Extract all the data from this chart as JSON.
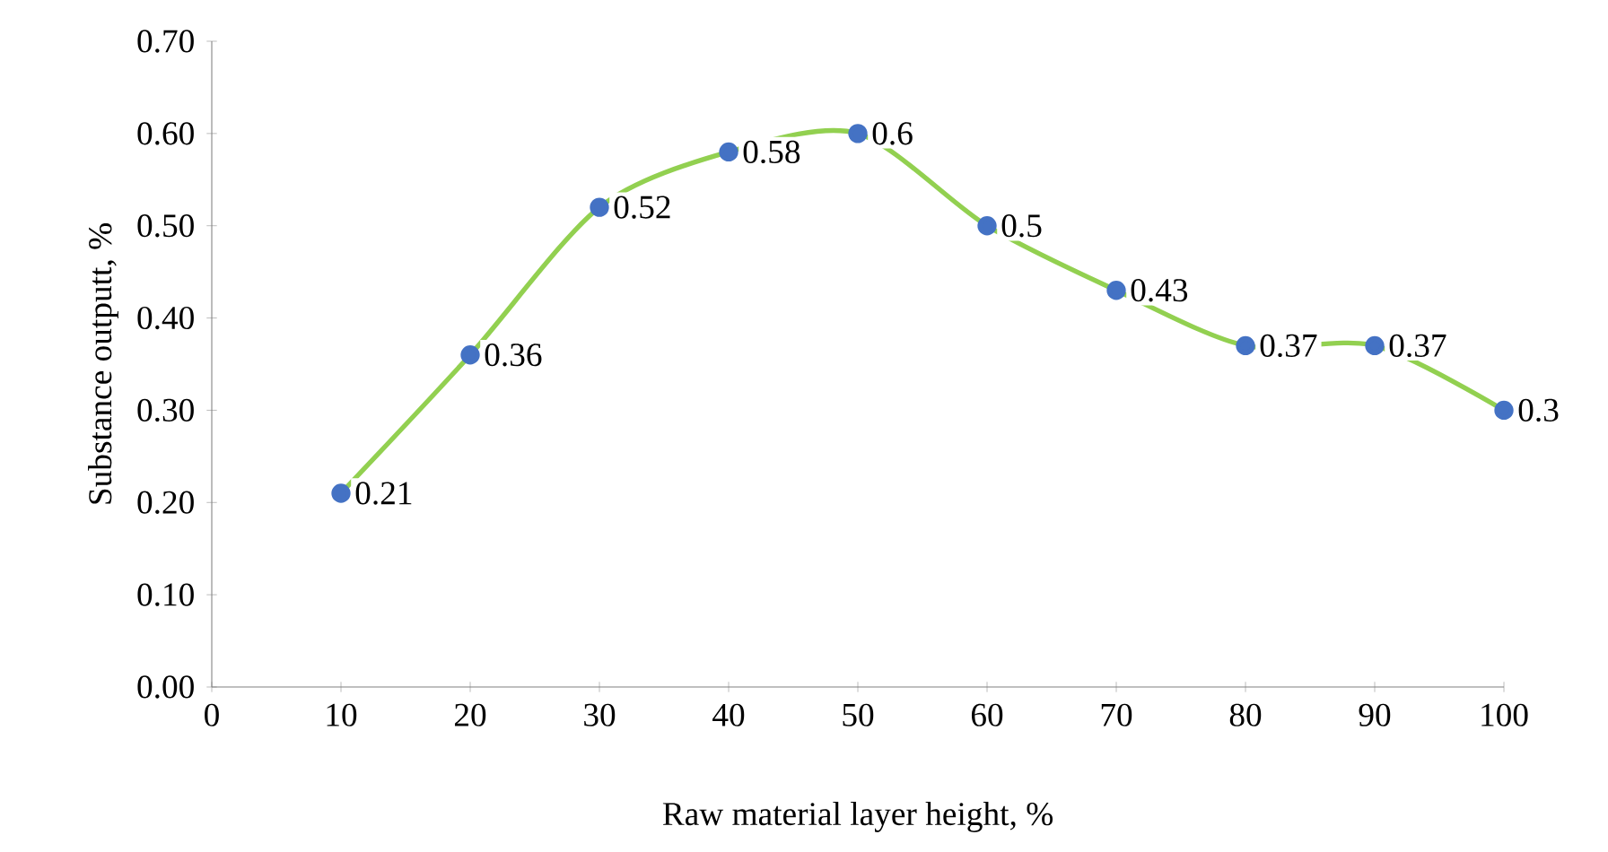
{
  "chart_data": {
    "type": "line",
    "xlabel": "Raw material layer height, %",
    "ylabel": "Substance outputt, %",
    "x": [
      10,
      20,
      30,
      40,
      50,
      60,
      70,
      80,
      90,
      100
    ],
    "values": [
      0.21,
      0.36,
      0.52,
      0.58,
      0.6,
      0.5,
      0.43,
      0.37,
      0.37,
      0.3
    ],
    "color": "#92d050",
    "marker": "circle",
    "line_style": "solid",
    "data_labels": true,
    "grid": false,
    "xlim": [
      0,
      100
    ],
    "xticks": [
      0,
      10,
      20,
      30,
      40,
      50,
      60,
      70,
      80,
      90,
      100
    ],
    "ylim": [
      0,
      0.7
    ],
    "yticks": [
      {
        "value": 0,
        "label": "0.00"
      },
      {
        "value": 0.1,
        "label": "0.10"
      },
      {
        "value": 0.2,
        "label": "0.20"
      },
      {
        "value": 0.3,
        "label": "0.30"
      },
      {
        "value": 0.4,
        "label": "0.40"
      },
      {
        "value": 0.5,
        "label": "0.50"
      },
      {
        "value": 0.6,
        "label": "0.60"
      },
      {
        "value": 0.7,
        "label": "0.70"
      }
    ]
  }
}
